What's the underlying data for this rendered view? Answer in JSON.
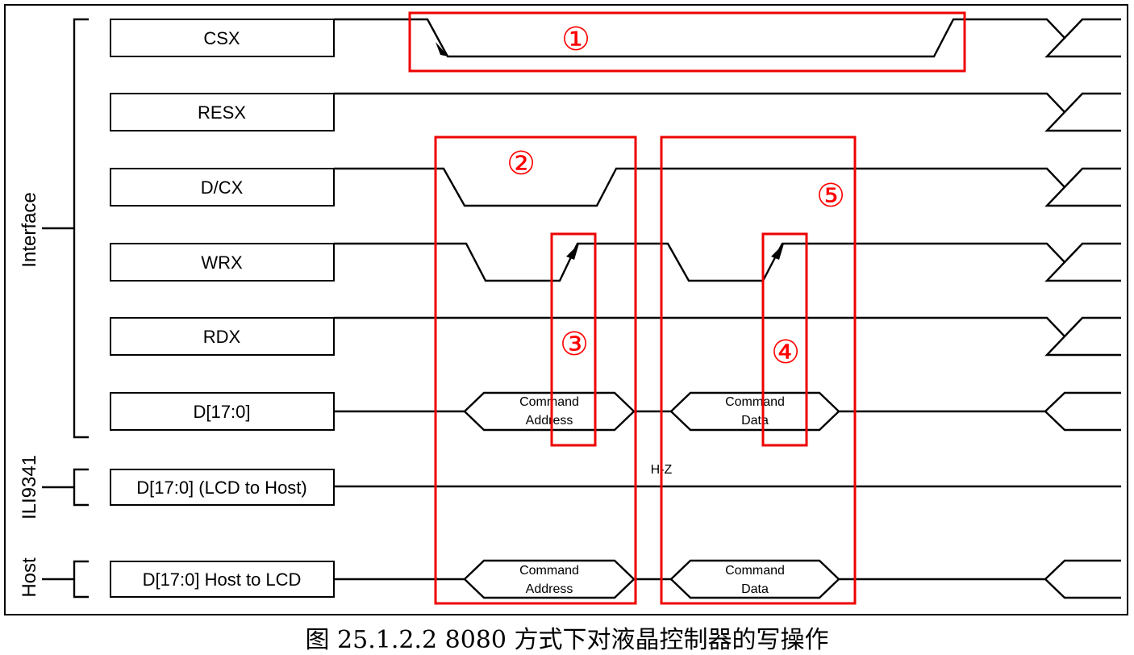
{
  "groups": {
    "interface": "Interface",
    "ili9341": "ILI9341",
    "host": "Host"
  },
  "signals": [
    "CSX",
    "RESX",
    "D/CX",
    "WRX",
    "RDX",
    "D[17:0]",
    "D[17:0] (LCD to Host)",
    "D[17:0] Host to LCD"
  ],
  "bus": {
    "cmd_addr_1": "Command",
    "cmd_addr_2": "Address",
    "cmd_data_1": "Command",
    "cmd_data_2": "Data",
    "hz": "H-Z"
  },
  "markers": [
    "①",
    "②",
    "③",
    "④",
    "⑤"
  ],
  "caption": "图 25.1.2.2 8080 方式下对液晶控制器的写操作",
  "colors": {
    "highlight": "#ff0000",
    "line": "#000000"
  }
}
